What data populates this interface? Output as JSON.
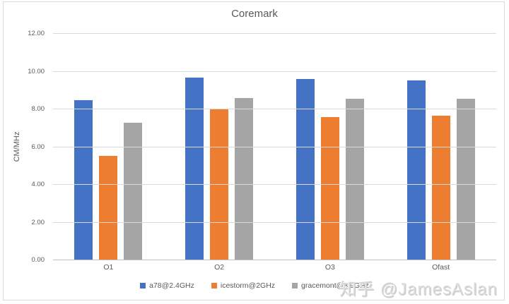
{
  "chart_data": {
    "type": "bar",
    "title": "Coremark",
    "categories": [
      "O1",
      "O2",
      "O3",
      "Ofast"
    ],
    "series": [
      {
        "name": "a78@2.4GHz",
        "color": "#4472C4",
        "values": [
          8.5,
          9.7,
          9.6,
          9.55
        ]
      },
      {
        "name": "icestorm@2GHz",
        "color": "#ED7D31",
        "values": [
          5.55,
          8.0,
          7.6,
          7.65
        ]
      },
      {
        "name": "gracemont@3.9GHz",
        "color": "#A5A5A5",
        "values": [
          7.3,
          8.6,
          8.55,
          8.55
        ]
      }
    ],
    "xlabel": "",
    "ylabel": "CM/MHz",
    "ylim": [
      0,
      12
    ],
    "yticks": [
      {
        "value": 0,
        "label": "0.00"
      },
      {
        "value": 2,
        "label": "2.00"
      },
      {
        "value": 4,
        "label": "4.00"
      },
      {
        "value": 6,
        "label": "6.00"
      },
      {
        "value": 8,
        "label": "8.00"
      },
      {
        "value": 10,
        "label": "10.00"
      },
      {
        "value": 12,
        "label": "12.00"
      }
    ],
    "grid": true,
    "legend_position": "bottom"
  },
  "watermark": {
    "text": "知乎 @JamesAslan"
  },
  "colors": {
    "frame_border": "#d9d9d9",
    "gridline": "#d9d9d9",
    "axis_line": "#bfbfbf",
    "text": "#595959",
    "background": "#ffffff"
  }
}
